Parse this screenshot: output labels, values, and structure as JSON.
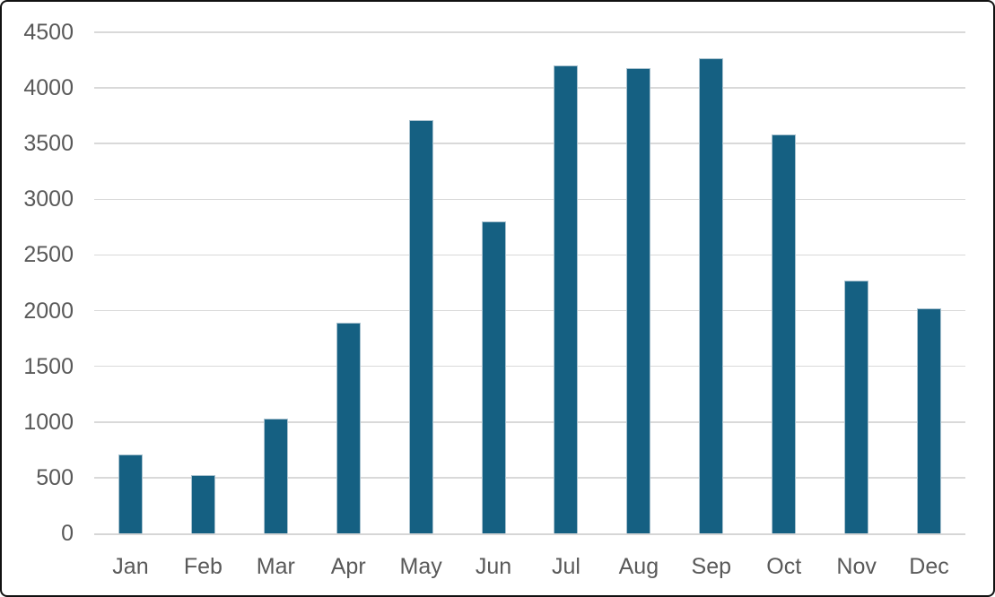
{
  "chart": {
    "bar_color": "#156082",
    "bar_edge_color": "#a9c2cf",
    "gridline_color": "#d9d9d9",
    "label_color": "#595959",
    "frame_border_color": "#111111",
    "background_color": "#ffffff"
  },
  "chart_data": {
    "type": "bar",
    "title": "",
    "xlabel": "",
    "ylabel": "",
    "categories": [
      "Jan",
      "Feb",
      "Mar",
      "Apr",
      "May",
      "Jun",
      "Jul",
      "Aug",
      "Sep",
      "Oct",
      "Nov",
      "Dec"
    ],
    "values": [
      710,
      520,
      1030,
      1890,
      3710,
      2800,
      4200,
      4180,
      4270,
      3580,
      2270,
      2020
    ],
    "ylim": [
      0,
      4500
    ],
    "ytick_interval": 500,
    "ytick_labels": [
      "0",
      "500",
      "1000",
      "1500",
      "2000",
      "2500",
      "3000",
      "3500",
      "4000",
      "4500"
    ],
    "grid": true,
    "legend": false,
    "series_name": ""
  }
}
